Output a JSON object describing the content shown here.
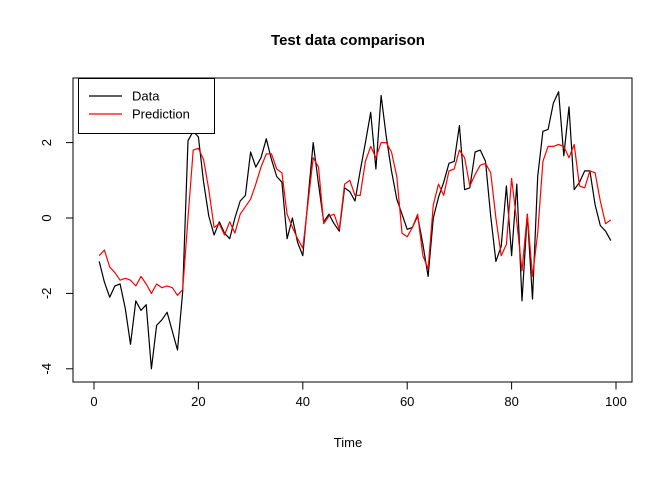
{
  "page": {
    "background": "#ffffff"
  },
  "chart_data": {
    "type": "line",
    "title": "Test data comparison",
    "xlabel": "Time",
    "ylabel": "",
    "grid": false,
    "legend_position": "topleft",
    "x_ticks": [
      0,
      20,
      40,
      60,
      80,
      100
    ],
    "y_ticks": [
      2,
      0,
      -2,
      -4
    ],
    "xlim": [
      -3,
      103
    ],
    "ylim": [
      -4.3,
      3.7
    ],
    "x": [
      1,
      2,
      3,
      4,
      5,
      6,
      7,
      8,
      9,
      10,
      11,
      12,
      13,
      14,
      15,
      16,
      17,
      18,
      19,
      20,
      21,
      22,
      23,
      24,
      25,
      26,
      27,
      28,
      29,
      30,
      31,
      32,
      33,
      34,
      35,
      36,
      37,
      38,
      39,
      40,
      41,
      42,
      43,
      44,
      45,
      46,
      47,
      48,
      49,
      50,
      51,
      52,
      53,
      54,
      55,
      56,
      57,
      58,
      59,
      60,
      61,
      62,
      63,
      64,
      65,
      66,
      67,
      68,
      69,
      70,
      71,
      72,
      73,
      74,
      75,
      76,
      77,
      78,
      79,
      80,
      81,
      82,
      83,
      84,
      85,
      86,
      87,
      88,
      89,
      90,
      91,
      92,
      93,
      94,
      95,
      96,
      97,
      98,
      99
    ],
    "series": [
      {
        "name": "Data",
        "color": "#000000",
        "values": [
          -1.15,
          -1.7,
          -2.1,
          -1.8,
          -1.75,
          -2.4,
          -3.35,
          -2.2,
          -2.45,
          -2.3,
          -4.0,
          -2.85,
          -2.7,
          -2.5,
          -3.0,
          -3.5,
          -1.95,
          2.05,
          2.3,
          2.15,
          0.95,
          0.05,
          -0.45,
          -0.1,
          -0.4,
          -0.55,
          0.0,
          0.45,
          0.6,
          1.75,
          1.35,
          1.6,
          2.1,
          1.55,
          1.1,
          0.95,
          -0.55,
          0.0,
          -0.65,
          -1.0,
          0.5,
          2.0,
          0.9,
          -0.1,
          0.1,
          -0.15,
          -0.35,
          0.8,
          0.7,
          0.45,
          1.25,
          2.0,
          2.8,
          1.3,
          3.25,
          2.15,
          1.25,
          0.5,
          0.1,
          -0.3,
          -0.25,
          0.05,
          -0.7,
          -1.55,
          0.0,
          0.55,
          0.95,
          1.45,
          1.5,
          2.45,
          0.75,
          0.8,
          1.75,
          1.8,
          1.5,
          0.05,
          -1.15,
          -0.75,
          0.85,
          -1.0,
          0.9,
          -2.2,
          0.1,
          -2.15,
          1.1,
          2.3,
          2.35,
          3.05,
          3.35,
          1.65,
          2.95,
          0.75,
          0.95,
          1.25,
          1.25,
          0.35,
          -0.2,
          -0.35,
          -0.6
        ]
      },
      {
        "name": "Prediction",
        "color": "#FF0000",
        "values": [
          -1.0,
          -0.85,
          -1.3,
          -1.45,
          -1.65,
          -1.6,
          -1.65,
          -1.8,
          -1.55,
          -1.75,
          -2.0,
          -1.75,
          -1.85,
          -1.8,
          -1.85,
          -2.05,
          -1.9,
          0.0,
          1.8,
          1.85,
          1.55,
          0.75,
          -0.25,
          -0.15,
          -0.45,
          -0.1,
          -0.4,
          0.1,
          0.3,
          0.5,
          0.9,
          1.35,
          1.7,
          1.7,
          1.3,
          1.2,
          0.1,
          -0.25,
          -0.55,
          -0.8,
          0.4,
          1.6,
          1.35,
          -0.15,
          0.05,
          0.1,
          -0.3,
          0.9,
          1.0,
          0.6,
          0.6,
          1.5,
          1.9,
          1.6,
          2.0,
          2.0,
          1.75,
          1.1,
          -0.4,
          -0.5,
          -0.25,
          0.1,
          -1.0,
          -1.35,
          0.35,
          0.9,
          0.6,
          1.25,
          1.3,
          1.8,
          1.6,
          0.85,
          1.15,
          1.4,
          1.45,
          1.2,
          0.0,
          -1.0,
          -0.7,
          1.05,
          -0.1,
          -1.4,
          0.1,
          -1.55,
          -0.4,
          1.5,
          1.9,
          1.9,
          1.95,
          1.9,
          1.6,
          1.95,
          0.85,
          0.8,
          1.25,
          1.2,
          0.45,
          -0.15,
          -0.05
        ]
      }
    ]
  }
}
